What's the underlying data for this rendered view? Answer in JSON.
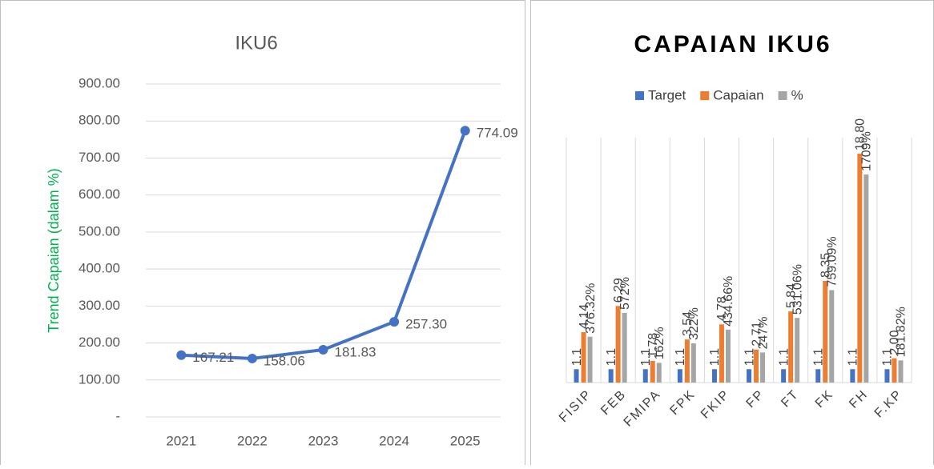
{
  "chart_data": [
    {
      "type": "line",
      "title": "IKU6",
      "y_label": "Trend Capaian (dalam %)",
      "categories": [
        "2021",
        "2022",
        "2023",
        "2024",
        "2025"
      ],
      "values": [
        167.21,
        158.06,
        181.83,
        257.3,
        774.09
      ],
      "value_labels": [
        "167.21",
        "158.06",
        "181.83",
        "257.30",
        "774.09"
      ],
      "color": "#4472c4",
      "ylim": [
        0,
        900
      ],
      "yticks": [
        {
          "value": 0,
          "label": "-"
        },
        {
          "value": 100,
          "label": "100.00"
        },
        {
          "value": 200,
          "label": "200.00"
        },
        {
          "value": 300,
          "label": "300.00"
        },
        {
          "value": 400,
          "label": "400.00"
        },
        {
          "value": 500,
          "label": "500.00"
        },
        {
          "value": 600,
          "label": "600.00"
        },
        {
          "value": 700,
          "label": "700.00"
        },
        {
          "value": 800,
          "label": "800.00"
        },
        {
          "value": 900,
          "label": "900.00"
        }
      ],
      "grid": true
    },
    {
      "type": "bar",
      "title": "CAPAIAN IKU6",
      "categories": [
        "FISIP",
        "FEB",
        "FMIPA",
        "FPK",
        "FKIP",
        "FP",
        "FT",
        "FK",
        "FH",
        "F.KP"
      ],
      "series": [
        {
          "name": "Target",
          "color": "#4472c4",
          "values": [
            1.1,
            1.1,
            1.1,
            1.1,
            1.1,
            1.1,
            1.1,
            1.1,
            1.1,
            1.1
          ]
        },
        {
          "name": "Capaian",
          "color": "#ed7d31",
          "values": [
            4.14,
            6.29,
            1.78,
            3.54,
            4.78,
            2.71,
            5.84,
            8.35,
            18.8,
            2.0
          ],
          "value_labels": [
            "4.14",
            "6.29",
            "1.78",
            "3.54",
            "4.78",
            "2.71",
            "5.84",
            "8.35",
            "18.80",
            "2.00"
          ]
        },
        {
          "name": "%",
          "color": "#a5a5a5",
          "values": [
            3.7632,
            5.72,
            1.62,
            3.22,
            4.3466,
            2.47,
            5.3106,
            7.5909,
            17.09,
            1.8182
          ],
          "value_labels": [
            "376.32%",
            "572%",
            "162%",
            "322%",
            "434.66%",
            "247%",
            "531.06%",
            "759.09%",
            "1709%",
            "181.82%"
          ]
        }
      ],
      "legend": "top"
    }
  ]
}
